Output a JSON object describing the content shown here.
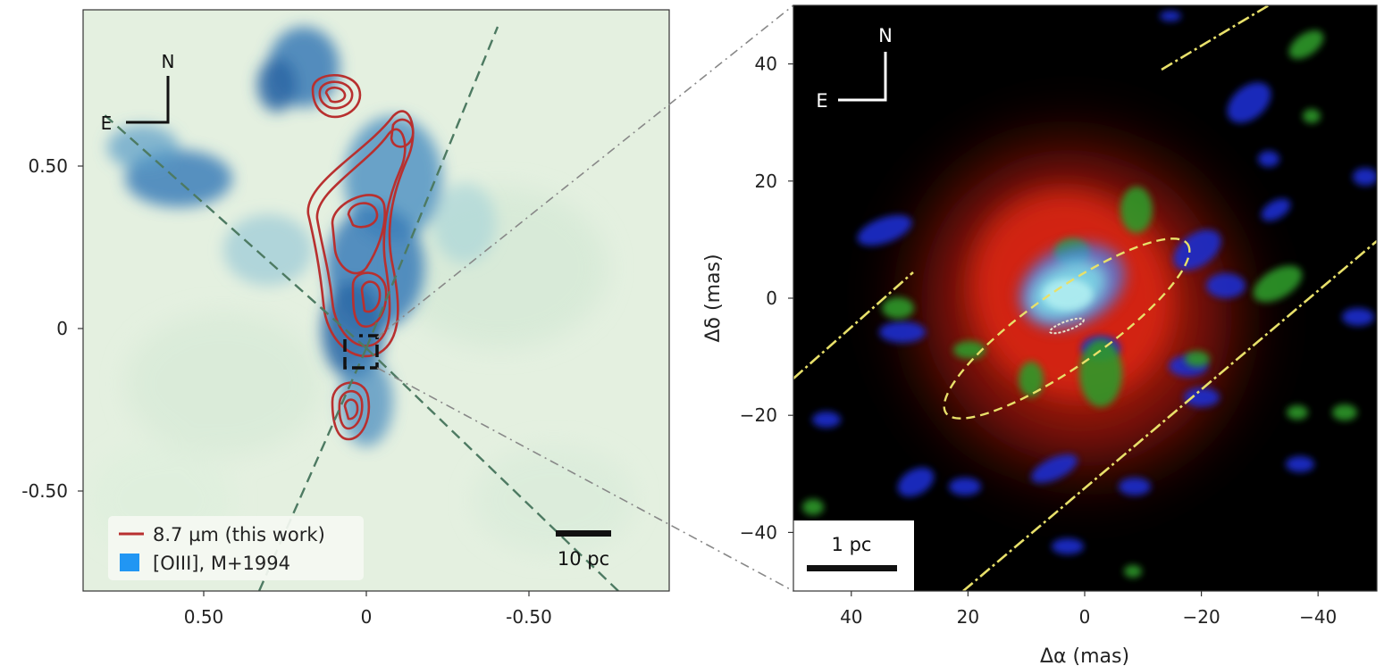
{
  "left_panel": {
    "compass": {
      "north": "N",
      "east": "E"
    },
    "x_ticks": [
      {
        "value": 0.5,
        "label": "0.50"
      },
      {
        "value": 0,
        "label": "0"
      },
      {
        "value": -0.5,
        "label": "-0.50"
      }
    ],
    "y_ticks": [
      {
        "value": 0.5,
        "label": "0.50"
      },
      {
        "value": 0,
        "label": "0"
      },
      {
        "value": -0.5,
        "label": "-0.50"
      }
    ],
    "legend": [
      {
        "label": "8.7 µm (this work)",
        "color": "#b8302f",
        "kind": "line"
      },
      {
        "label": "[OIII], M+1994",
        "color": "#2196f3",
        "kind": "patch"
      }
    ],
    "scale_bar": {
      "label": "10 pc"
    },
    "colors": {
      "background": "#e4f0e0",
      "emission": "#2f6da8",
      "contours": "#b8302f"
    }
  },
  "right_panel": {
    "compass": {
      "north": "N",
      "east": "E"
    },
    "x_axis_label": "Δα (mas)",
    "y_axis_label": "Δδ (mas)",
    "x_ticks": [
      {
        "value": 40,
        "label": "40"
      },
      {
        "value": 20,
        "label": "20"
      },
      {
        "value": 0,
        "label": "0"
      },
      {
        "value": -20,
        "label": "−20"
      },
      {
        "value": -40,
        "label": "−40"
      }
    ],
    "y_ticks": [
      {
        "value": 40,
        "label": "40"
      },
      {
        "value": 20,
        "label": "20"
      },
      {
        "value": 0,
        "label": "0"
      },
      {
        "value": -20,
        "label": "−20"
      },
      {
        "value": -40,
        "label": "−40"
      }
    ],
    "scale_bar": {
      "label": "1 pc"
    },
    "colors": {
      "background": "#000000",
      "red": "#e81e12",
      "green": "#2f9a2a",
      "blue": "#1c2fd0",
      "cyan": "#8af2f2",
      "yellow": "#e8e06a"
    }
  }
}
